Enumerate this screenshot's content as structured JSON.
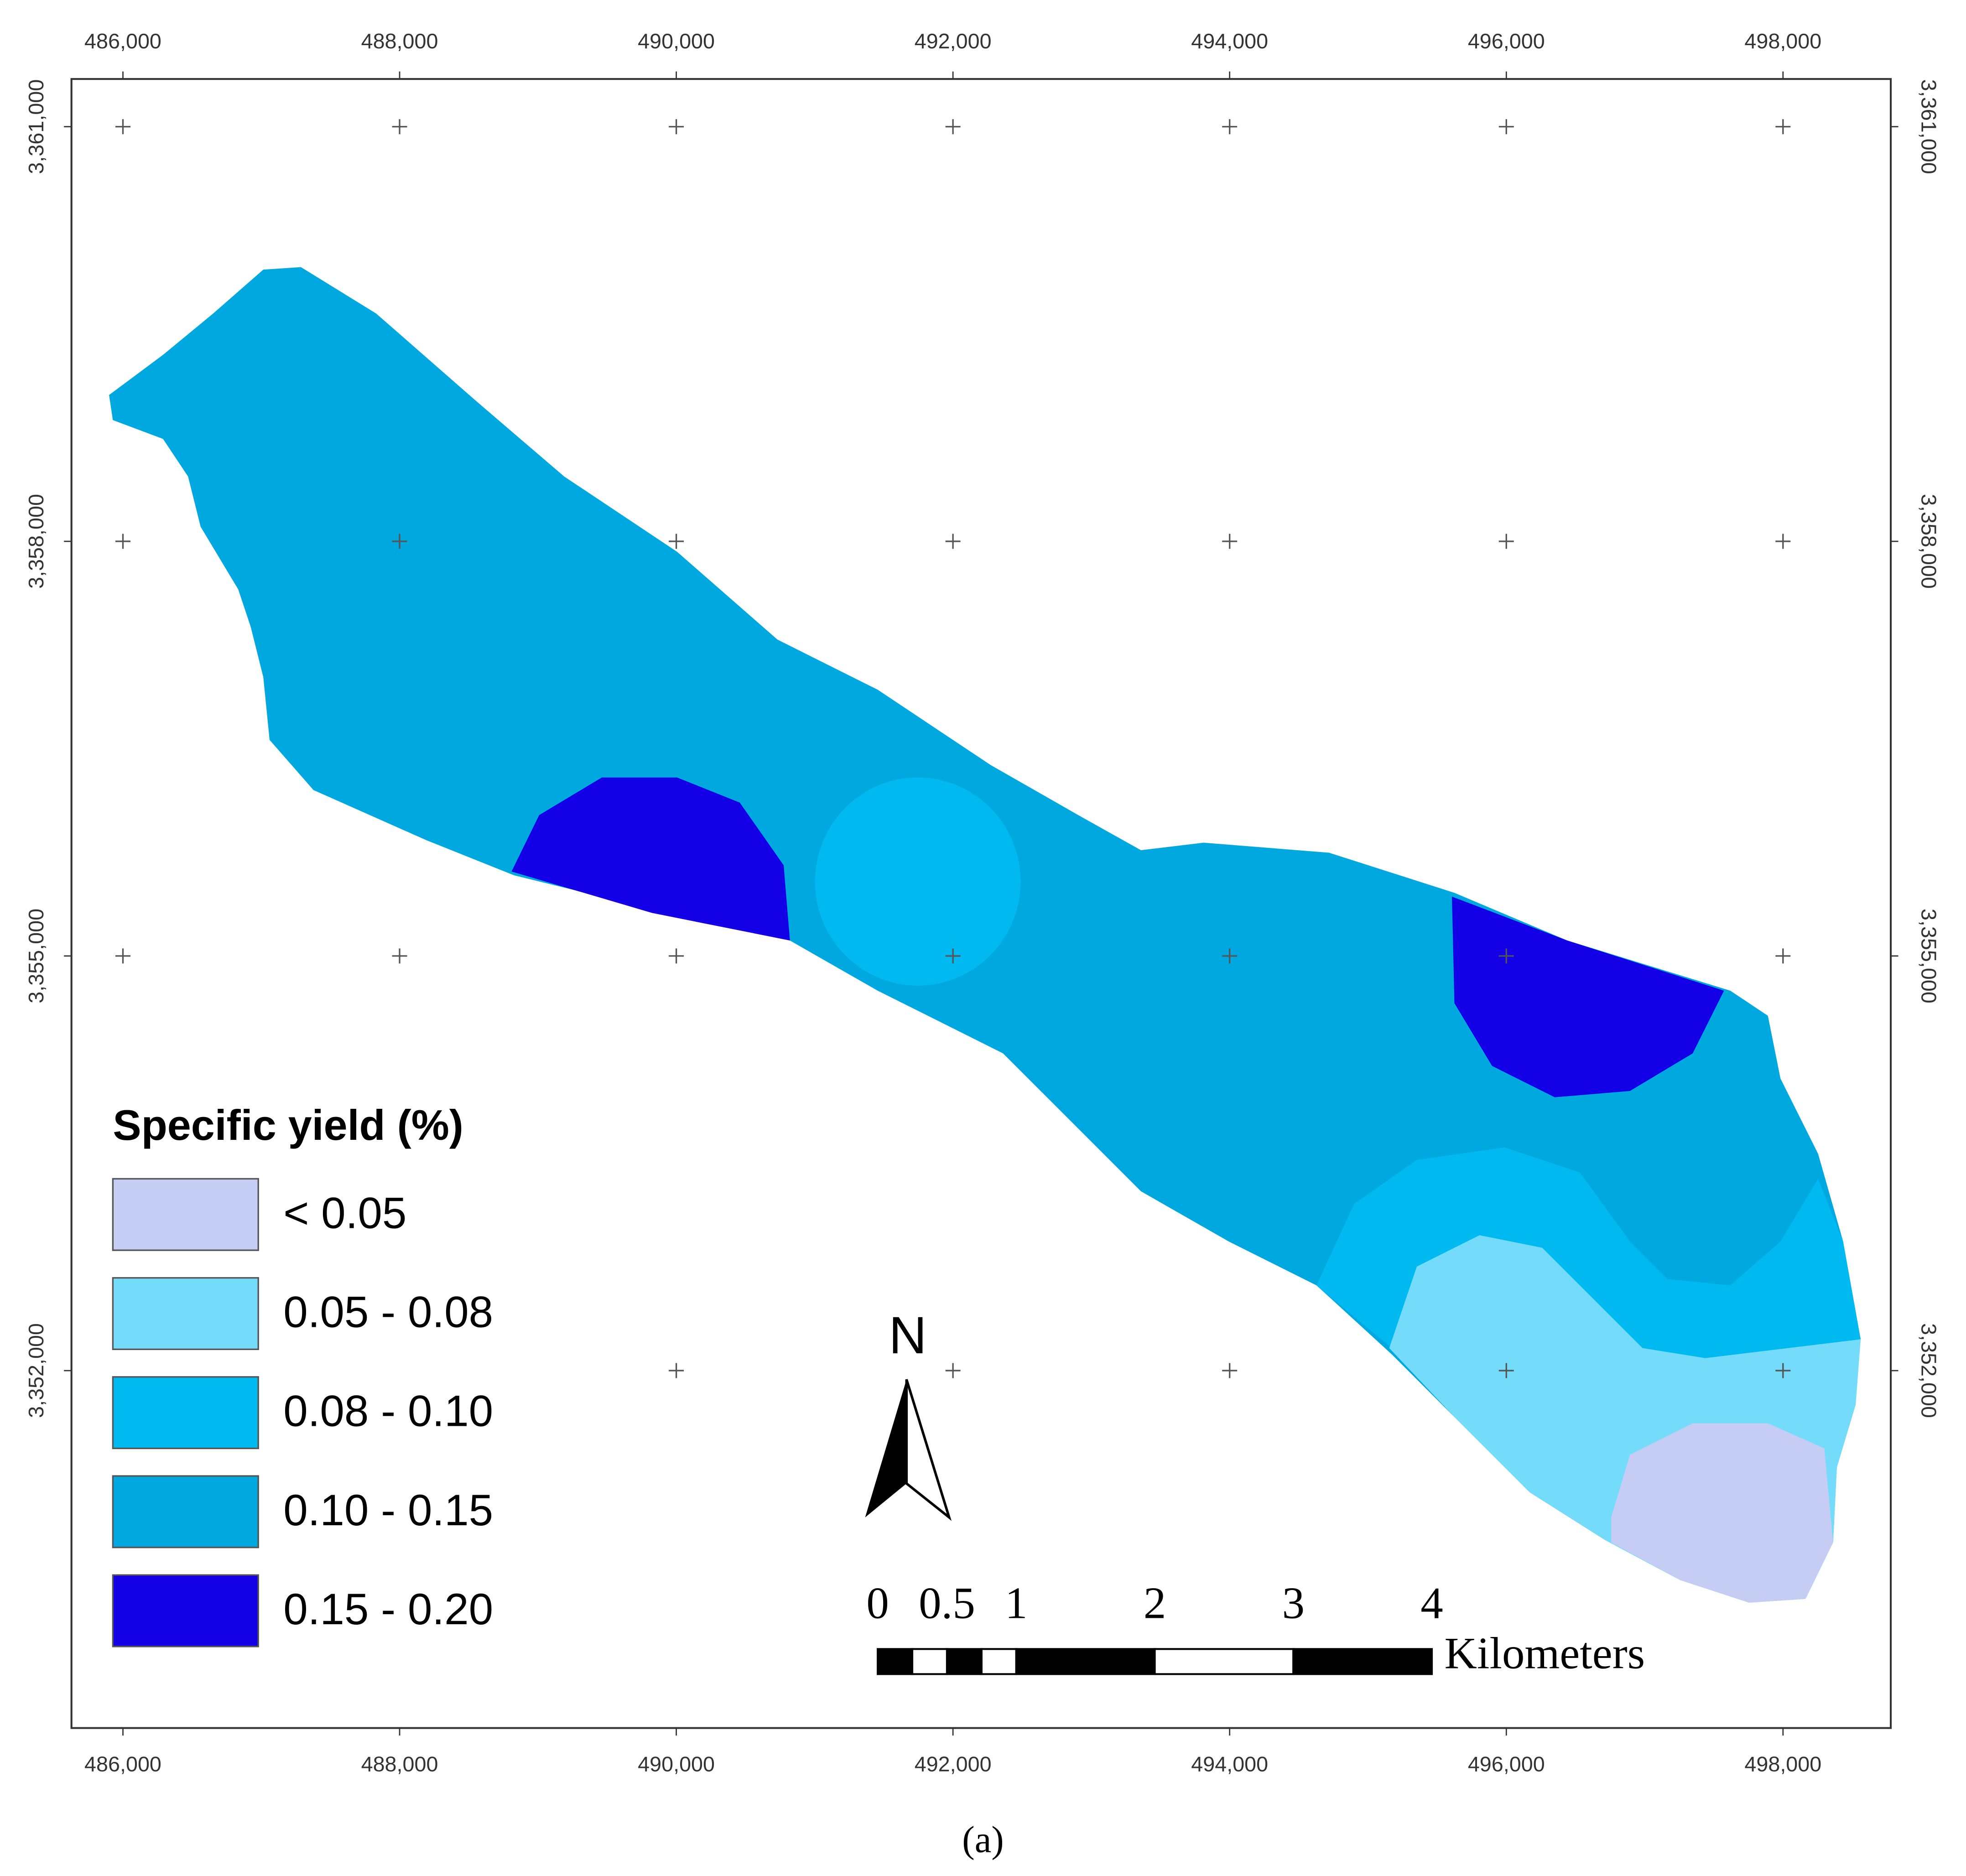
{
  "map": {
    "xaxis": {
      "xlim": [
        485628,
        498779
      ],
      "ticks": [
        {
          "value": 486000,
          "label": "486,000"
        },
        {
          "value": 488000,
          "label": "488,000"
        },
        {
          "value": 490000,
          "label": "490,000"
        },
        {
          "value": 492000,
          "label": "492,000"
        },
        {
          "value": 494000,
          "label": "494,000"
        },
        {
          "value": 496000,
          "label": "496,000"
        },
        {
          "value": 498000,
          "label": "498,000"
        }
      ]
    },
    "yaxis": {
      "ylim": [
        3349414,
        3361345
      ],
      "ticks": [
        {
          "value": 3361000,
          "label": "3,361,000"
        },
        {
          "value": 3358000,
          "label": "3,358,000"
        },
        {
          "value": 3355000,
          "label": "3,355,000"
        },
        {
          "value": 3352000,
          "label": "3,352,000"
        }
      ]
    },
    "legend": {
      "title": "Specific yield (%)",
      "items": [
        {
          "label": "< 0.05",
          "color": "#c5cdf5"
        },
        {
          "label": "0.05 - 0.08",
          "color": "#74dbfa"
        },
        {
          "label": "0.08 - 0.10",
          "color": "#00b9f1"
        },
        {
          "label": "0.10 - 0.15",
          "color": "#00a8e0"
        },
        {
          "label": "0.15 - 0.20",
          "color": "#1400e6"
        }
      ]
    },
    "north_arrow": "N",
    "scale_bar": {
      "ticks": [
        0,
        0.5,
        1,
        2,
        3,
        4
      ],
      "unit": "Kilometers"
    },
    "caption": "(a)"
  }
}
